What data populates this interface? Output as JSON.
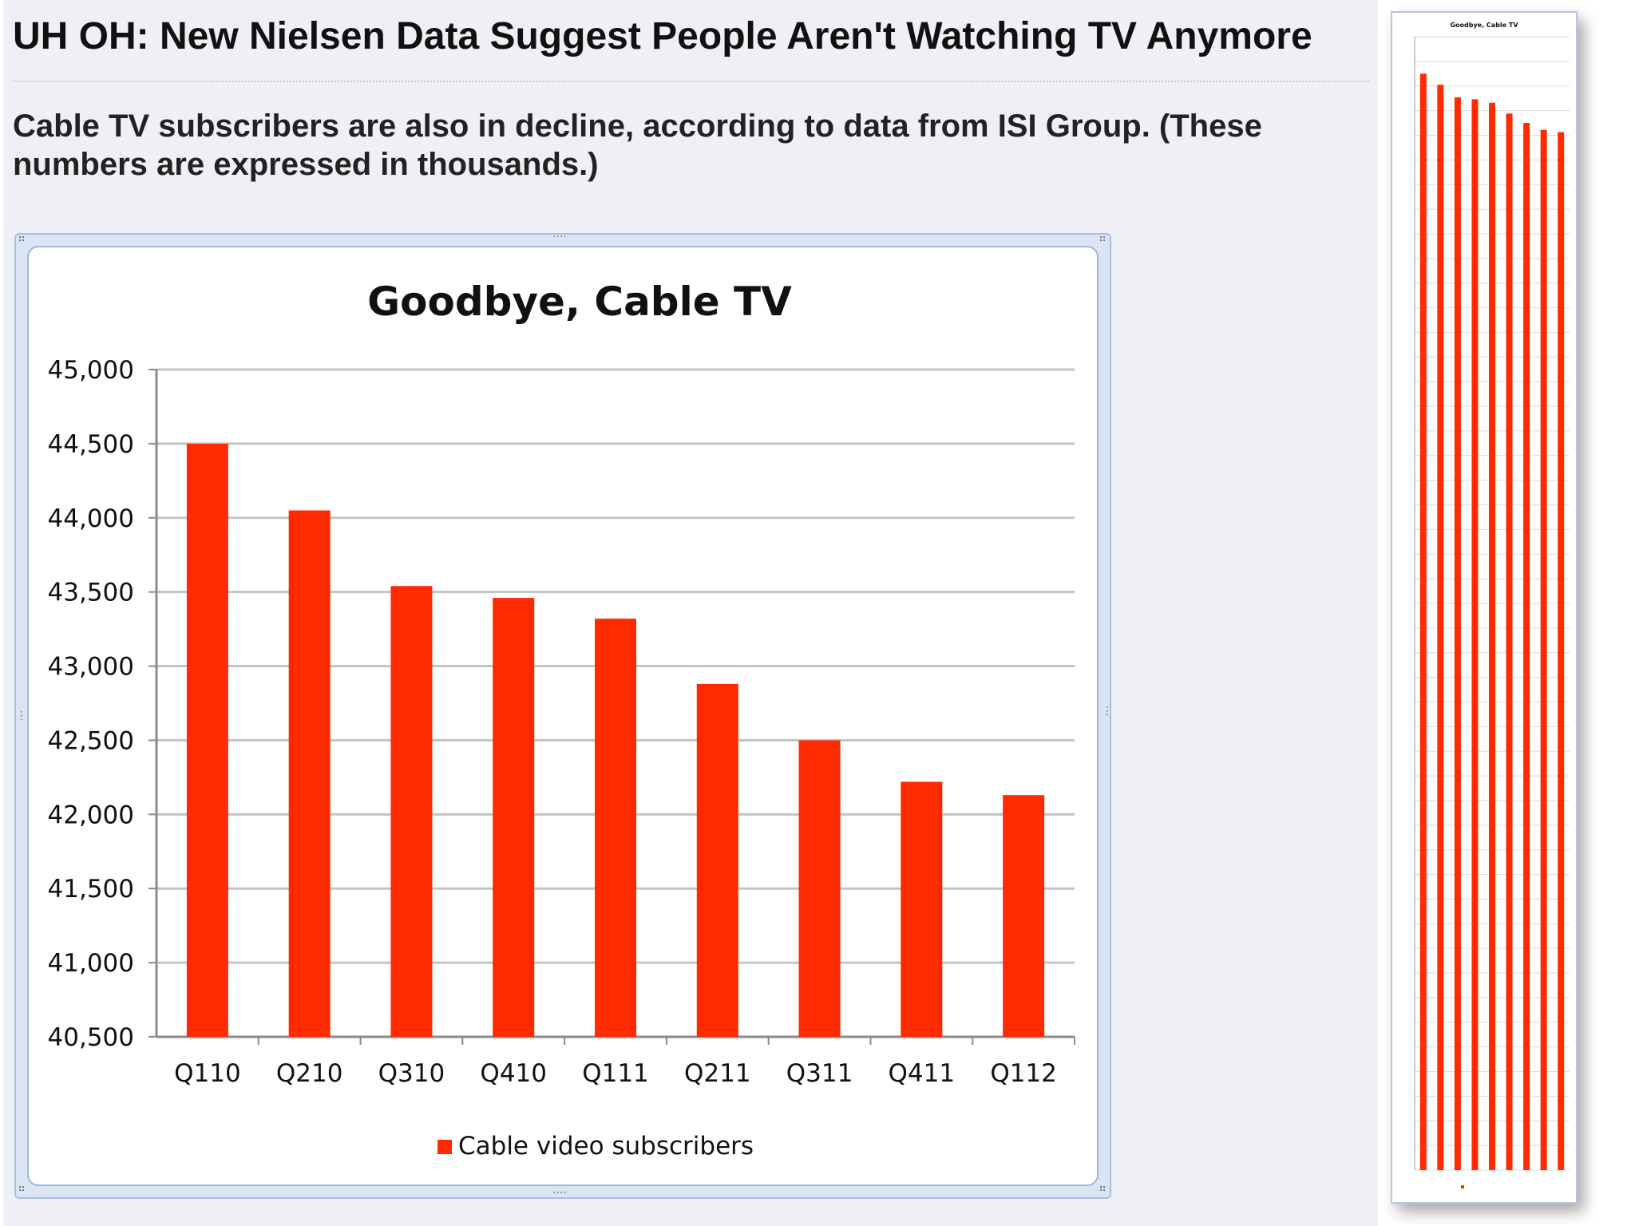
{
  "article": {
    "headline": "UH OH: New Nielsen Data Suggest People Aren't Watching TV Anymore",
    "subhead": "Cable TV subscribers are also in decline, according to data from ISI Group. (These numbers are expressed in thousands.)"
  },
  "colors": {
    "bar": "#ff2a00",
    "grid": "#c4c4c4",
    "axis": "#8a8a8a",
    "text": "#111111"
  },
  "chart_data": {
    "type": "bar",
    "title": "Goodbye, Cable TV",
    "xlabel": "",
    "ylabel": "",
    "categories": [
      "Q110",
      "Q210",
      "Q310",
      "Q410",
      "Q111",
      "Q211",
      "Q311",
      "Q411",
      "Q112"
    ],
    "series": [
      {
        "name": "Cable video subscribers",
        "values": [
          44500,
          44050,
          43540,
          43460,
          43320,
          42880,
          42500,
          42220,
          42130
        ]
      }
    ],
    "ylim": [
      40500,
      45000
    ],
    "yticks": [
      "40,500",
      "41,000",
      "41,500",
      "42,000",
      "42,500",
      "43,000",
      "43,500",
      "44,000",
      "44,500",
      "45,000"
    ],
    "grid": true,
    "legend": "bottom"
  }
}
